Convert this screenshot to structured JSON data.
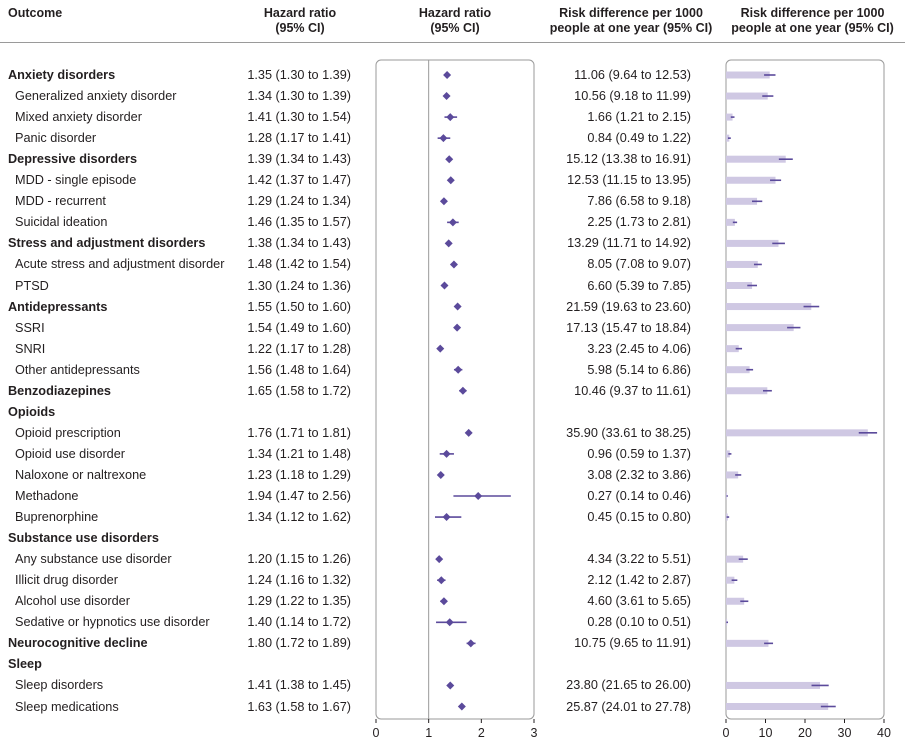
{
  "headers": {
    "outcome": "Outcome",
    "hr_text_title": "Hazard ratio",
    "hr_text_sub": "(95% CI)",
    "hr_plot_title": "Hazard ratio",
    "hr_plot_sub": "(95% CI)",
    "rd_text_title": "Risk difference per 1000",
    "rd_text_sub": "people at one year (95% CI)",
    "rd_plot_title": "Risk difference per 1000",
    "rd_plot_sub": "people at one year (95% CI)"
  },
  "colors": {
    "marker": "#5b4a9b",
    "bar_fill": "#cfc8e3",
    "text": "#231f20",
    "panel_border": "#9a9a9a"
  },
  "rows": [
    {
      "label": "Anxiety disorders",
      "bold": true,
      "hr_text": "1.35 (1.30 to 1.39)",
      "rd_text": "11.06 (9.64 to 12.53)"
    },
    {
      "label": "Generalized anxiety disorder",
      "bold": false,
      "hr_text": "1.34 (1.30 to 1.39)",
      "rd_text": "10.56 (9.18 to 11.99)"
    },
    {
      "label": "Mixed anxiety disorder",
      "bold": false,
      "hr_text": "1.41 (1.30 to 1.54)",
      "rd_text": "1.66 (1.21 to 2.15)"
    },
    {
      "label": "Panic disorder",
      "bold": false,
      "hr_text": "1.28 (1.17 to 1.41)",
      "rd_text": "0.84 (0.49 to 1.22)"
    },
    {
      "label": "Depressive disorders",
      "bold": true,
      "hr_text": "1.39 (1.34 to 1.43)",
      "rd_text": "15.12 (13.38 to 16.91)"
    },
    {
      "label": "MDD - single episode",
      "bold": false,
      "hr_text": "1.42 (1.37 to 1.47)",
      "rd_text": "12.53 (11.15 to 13.95)"
    },
    {
      "label": "MDD - recurrent",
      "bold": false,
      "hr_text": "1.29 (1.24 to 1.34)",
      "rd_text": "7.86 (6.58 to 9.18)"
    },
    {
      "label": "Suicidal ideation",
      "bold": false,
      "hr_text": "1.46 (1.35 to 1.57)",
      "rd_text": "2.25 (1.73 to 2.81)"
    },
    {
      "label": "Stress and adjustment disorders",
      "bold": true,
      "hr_text": "1.38 (1.34 to 1.43)",
      "rd_text": "13.29 (11.71 to 14.92)"
    },
    {
      "label": "Acute stress and adjustment disorder",
      "bold": false,
      "hr_text": "1.48 (1.42 to 1.54)",
      "rd_text": "8.05 (7.08 to 9.07)"
    },
    {
      "label": "PTSD",
      "bold": false,
      "hr_text": "1.30 (1.24 to 1.36)",
      "rd_text": "6.60 (5.39 to 7.85)"
    },
    {
      "label": "Antidepressants",
      "bold": true,
      "hr_text": "1.55 (1.50 to 1.60)",
      "rd_text": "21.59 (19.63 to 23.60)"
    },
    {
      "label": "SSRI",
      "bold": false,
      "hr_text": "1.54 (1.49 to 1.60)",
      "rd_text": "17.13 (15.47 to 18.84)"
    },
    {
      "label": "SNRI",
      "bold": false,
      "hr_text": "1.22 (1.17 to 1.28)",
      "rd_text": "3.23 (2.45 to 4.06)"
    },
    {
      "label": "Other antidepressants",
      "bold": false,
      "hr_text": "1.56 (1.48 to 1.64)",
      "rd_text": "5.98 (5.14 to 6.86)"
    },
    {
      "label": "Benzodiazepines",
      "bold": true,
      "hr_text": "1.65 (1.58 to 1.72)",
      "rd_text": "10.46 (9.37 to 11.61)"
    },
    {
      "label": "Opioids",
      "bold": true,
      "hr_text": "",
      "rd_text": ""
    },
    {
      "label": "Opioid prescription",
      "bold": false,
      "hr_text": "1.76 (1.71 to 1.81)",
      "rd_text": "35.90 (33.61 to 38.25)"
    },
    {
      "label": "Opioid use disorder",
      "bold": false,
      "hr_text": "1.34 (1.21 to 1.48)",
      "rd_text": "0.96 (0.59 to 1.37)"
    },
    {
      "label": "Naloxone or naltrexone",
      "bold": false,
      "hr_text": "1.23 (1.18 to 1.29)",
      "rd_text": "3.08 (2.32 to 3.86)"
    },
    {
      "label": "Methadone",
      "bold": false,
      "hr_text": "1.94 (1.47 to 2.56)",
      "rd_text": "0.27 (0.14 to 0.46)"
    },
    {
      "label": "Buprenorphine",
      "bold": false,
      "hr_text": "1.34 (1.12 to 1.62)",
      "rd_text": "0.45 (0.15 to 0.80)"
    },
    {
      "label": "Substance use disorders",
      "bold": true,
      "hr_text": "",
      "rd_text": ""
    },
    {
      "label": "Any substance use disorder",
      "bold": false,
      "hr_text": "1.20 (1.15 to 1.26)",
      "rd_text": "4.34 (3.22 to 5.51)"
    },
    {
      "label": "Illicit drug disorder",
      "bold": false,
      "hr_text": "1.24 (1.16 to 1.32)",
      "rd_text": "2.12 (1.42 to 2.87)"
    },
    {
      "label": "Alcohol use disorder",
      "bold": false,
      "hr_text": "1.29 (1.22 to 1.35)",
      "rd_text": "4.60 (3.61 to 5.65)"
    },
    {
      "label": "Sedative or hypnotics use disorder",
      "bold": false,
      "hr_text": "1.40 (1.14 to 1.72)",
      "rd_text": "0.28 (0.10 to 0.51)"
    },
    {
      "label": "Neurocognitive decline",
      "bold": true,
      "hr_text": "1.80 (1.72 to 1.89)",
      "rd_text": "10.75 (9.65 to 11.91)"
    },
    {
      "label": "Sleep",
      "bold": true,
      "hr_text": "",
      "rd_text": ""
    },
    {
      "label": "Sleep disorders",
      "bold": false,
      "hr_text": "1.41 (1.38 to 1.45)",
      "rd_text": "23.80 (21.65 to 26.00)"
    },
    {
      "label": "Sleep medications",
      "bold": false,
      "hr_text": "1.63 (1.58 to 1.67)",
      "rd_text": "25.87 (24.01 to 27.78)"
    }
  ],
  "chart_data": [
    {
      "type": "scatter",
      "title": "Hazard ratio (95% CI)",
      "xlim": [
        0,
        3
      ],
      "xticks": [
        "0",
        "1",
        "2",
        "3"
      ],
      "reference_line": 1,
      "categories": [
        "Anxiety disorders",
        "Generalized anxiety disorder",
        "Mixed anxiety disorder",
        "Panic disorder",
        "Depressive disorders",
        "MDD - single episode",
        "MDD - recurrent",
        "Suicidal ideation",
        "Stress and adjustment disorders",
        "Acute stress and adjustment disorder",
        "PTSD",
        "Antidepressants",
        "SSRI",
        "SNRI",
        "Other antidepressants",
        "Benzodiazepines",
        "Opioids",
        "Opioid prescription",
        "Opioid use disorder",
        "Naloxone or naltrexone",
        "Methadone",
        "Buprenorphine",
        "Substance use disorders",
        "Any substance use disorder",
        "Illicit drug disorder",
        "Alcohol use disorder",
        "Sedative or hypnotics use disorder",
        "Neurocognitive decline",
        "Sleep",
        "Sleep disorders",
        "Sleep medications"
      ],
      "estimate": [
        1.35,
        1.34,
        1.41,
        1.28,
        1.39,
        1.42,
        1.29,
        1.46,
        1.38,
        1.48,
        1.3,
        1.55,
        1.54,
        1.22,
        1.56,
        1.65,
        null,
        1.76,
        1.34,
        1.23,
        1.94,
        1.34,
        null,
        1.2,
        1.24,
        1.29,
        1.4,
        1.8,
        null,
        1.41,
        1.63
      ],
      "lower": [
        1.3,
        1.3,
        1.3,
        1.17,
        1.34,
        1.37,
        1.24,
        1.35,
        1.34,
        1.42,
        1.24,
        1.5,
        1.49,
        1.17,
        1.48,
        1.58,
        null,
        1.71,
        1.21,
        1.18,
        1.47,
        1.12,
        null,
        1.15,
        1.16,
        1.22,
        1.14,
        1.72,
        null,
        1.38,
        1.58
      ],
      "upper": [
        1.39,
        1.39,
        1.54,
        1.41,
        1.43,
        1.47,
        1.34,
        1.57,
        1.43,
        1.54,
        1.36,
        1.6,
        1.6,
        1.28,
        1.64,
        1.72,
        null,
        1.81,
        1.48,
        1.29,
        2.56,
        1.62,
        null,
        1.26,
        1.32,
        1.35,
        1.72,
        1.89,
        null,
        1.45,
        1.67
      ]
    },
    {
      "type": "bar",
      "title": "Risk difference per 1000 people at one year (95% CI)",
      "xlim": [
        0,
        40
      ],
      "xticks": [
        "0",
        "10",
        "20",
        "30",
        "40"
      ],
      "categories": [
        "Anxiety disorders",
        "Generalized anxiety disorder",
        "Mixed anxiety disorder",
        "Panic disorder",
        "Depressive disorders",
        "MDD - single episode",
        "MDD - recurrent",
        "Suicidal ideation",
        "Stress and adjustment disorders",
        "Acute stress and adjustment disorder",
        "PTSD",
        "Antidepressants",
        "SSRI",
        "SNRI",
        "Other antidepressants",
        "Benzodiazepines",
        "Opioids",
        "Opioid prescription",
        "Opioid use disorder",
        "Naloxone or naltrexone",
        "Methadone",
        "Buprenorphine",
        "Substance use disorders",
        "Any substance use disorder",
        "Illicit drug disorder",
        "Alcohol use disorder",
        "Sedative or hypnotics use disorder",
        "Neurocognitive decline",
        "Sleep",
        "Sleep disorders",
        "Sleep medications"
      ],
      "values": [
        11.06,
        10.56,
        1.66,
        0.84,
        15.12,
        12.53,
        7.86,
        2.25,
        13.29,
        8.05,
        6.6,
        21.59,
        17.13,
        3.23,
        5.98,
        10.46,
        null,
        35.9,
        0.96,
        3.08,
        0.27,
        0.45,
        null,
        4.34,
        2.12,
        4.6,
        0.28,
        10.75,
        null,
        23.8,
        25.87
      ],
      "lower": [
        9.64,
        9.18,
        1.21,
        0.49,
        13.38,
        11.15,
        6.58,
        1.73,
        11.71,
        7.08,
        5.39,
        19.63,
        15.47,
        2.45,
        5.14,
        9.37,
        null,
        33.61,
        0.59,
        2.32,
        0.14,
        0.15,
        null,
        3.22,
        1.42,
        3.61,
        0.1,
        9.65,
        null,
        21.65,
        24.01
      ],
      "upper": [
        12.53,
        11.99,
        2.15,
        1.22,
        16.91,
        13.95,
        9.18,
        2.81,
        14.92,
        9.07,
        7.85,
        23.6,
        18.84,
        4.06,
        6.86,
        11.61,
        null,
        38.25,
        1.37,
        3.86,
        0.46,
        0.8,
        null,
        5.51,
        2.87,
        5.65,
        0.51,
        11.91,
        null,
        26.0,
        27.78
      ]
    }
  ]
}
